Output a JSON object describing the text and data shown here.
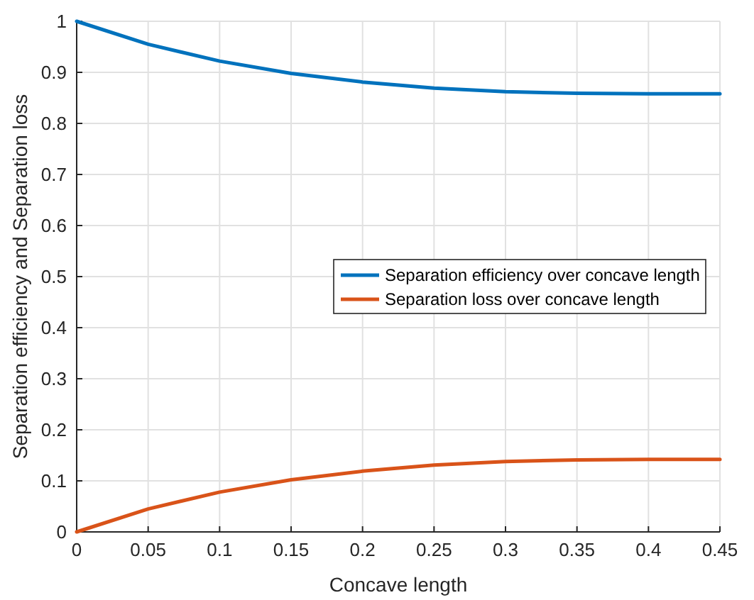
{
  "chart_data": {
    "type": "line",
    "xlabel": "Concave length",
    "ylabel": "Separation efficiency and Separation loss",
    "x": [
      0,
      0.05,
      0.1,
      0.15,
      0.2,
      0.25,
      0.3,
      0.35,
      0.4,
      0.45
    ],
    "series": [
      {
        "name": "Separation efficiency over concave length",
        "color": "#0072bd",
        "values": [
          1,
          0.955,
          0.922,
          0.898,
          0.881,
          0.869,
          0.862,
          0.859,
          0.858,
          0.858
        ]
      },
      {
        "name": "Separation loss over concave length",
        "color": "#d95319",
        "values": [
          0,
          0.045,
          0.078,
          0.102,
          0.119,
          0.131,
          0.138,
          0.141,
          0.142,
          0.142
        ]
      }
    ],
    "xlim": [
      0,
      0.45
    ],
    "xticks": [
      0,
      0.05,
      0.1,
      0.15,
      0.2,
      0.25,
      0.3,
      0.35,
      0.4,
      0.45
    ],
    "ylim": [
      0,
      1
    ],
    "yticks": [
      0,
      0.1,
      0.2,
      0.3,
      0.4,
      0.5,
      0.6,
      0.7,
      0.8,
      0.9,
      1
    ],
    "grid": true,
    "legend": "right",
    "line_style": "solid",
    "marker": "none"
  }
}
